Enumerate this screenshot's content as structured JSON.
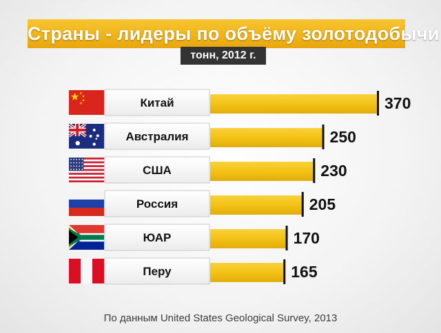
{
  "title": "Страны - лидеры по объёму золотодобычи",
  "subtitle": "тонн, 2012 г.",
  "source": "По данным United States Geological Survey, 2013",
  "chart_data": {
    "type": "bar",
    "orientation": "horizontal",
    "title": "Страны - лидеры по объёму золотодобычи",
    "subtitle": "тонн, 2012 г.",
    "categories": [
      "Китай",
      "Австралия",
      "США",
      "Россия",
      "ЮАР",
      "Перу"
    ],
    "values": [
      370,
      250,
      230,
      205,
      170,
      165
    ],
    "flags": [
      "china-flag-icon",
      "australia-flag-icon",
      "usa-flag-icon",
      "russia-flag-icon",
      "south-africa-flag-icon",
      "peru-flag-icon"
    ],
    "bar_color": "#f3c215",
    "xlim": [
      0,
      370
    ],
    "grid": false,
    "legend": "none"
  },
  "colors": {
    "banner": "#f0b41a",
    "subtitle_bg": "#333333",
    "bar": "#f3c215"
  }
}
